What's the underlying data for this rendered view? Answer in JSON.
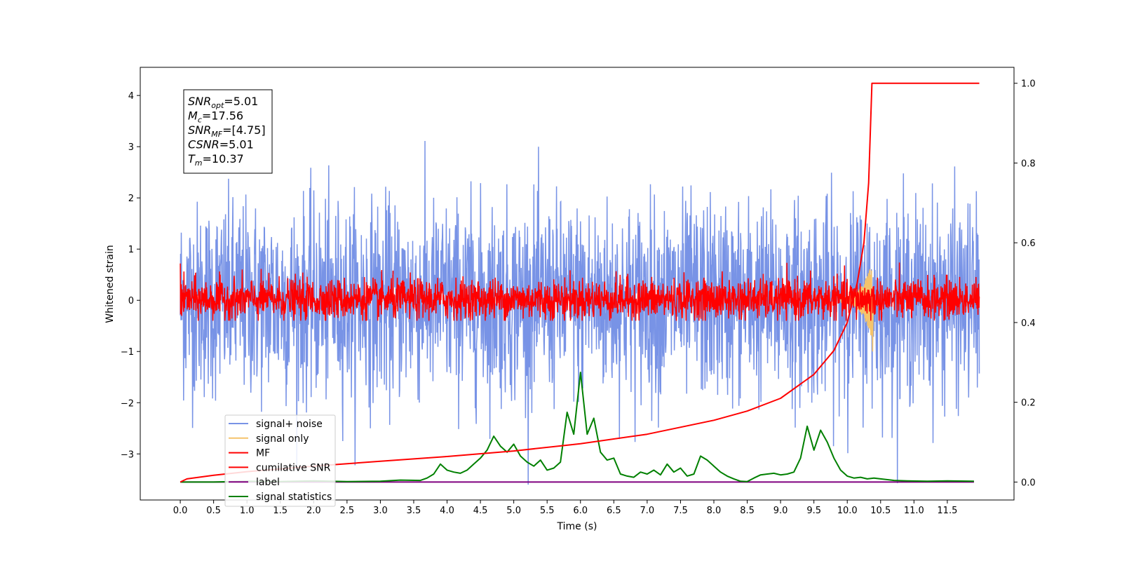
{
  "chart_data": {
    "type": "line",
    "title": "",
    "xlabel": "Time (s)",
    "ylabel": "Whitened strain",
    "xlim": [
      -0.6,
      12.5
    ],
    "ylim": [
      -3.9,
      4.55
    ],
    "y2lim": [
      -0.045,
      1.04
    ],
    "x_ticks": [
      "0.0",
      "0.5",
      "1.0",
      "1.5",
      "2.0",
      "2.5",
      "3.0",
      "3.5",
      "4.0",
      "4.5",
      "5.0",
      "5.5",
      "6.0",
      "6.5",
      "7.0",
      "7.5",
      "8.0",
      "8.5",
      "9.0",
      "9.5",
      "10.0",
      "10.5",
      "11.0",
      "11.5"
    ],
    "y_ticks": [
      "−3",
      "−2",
      "−1",
      "0",
      "1",
      "2",
      "3",
      "4"
    ],
    "y2_ticks": [
      "0.0",
      "0.2",
      "0.4",
      "0.6",
      "0.8",
      "1.0"
    ],
    "y_tick_values": [
      -3,
      -2,
      -1,
      0,
      1,
      2,
      3,
      4
    ],
    "y2_tick_values": [
      0,
      0.2,
      0.4,
      0.6,
      0.8,
      1.0
    ],
    "x_range": [
      0,
      11.98
    ],
    "merger_time": 10.37,
    "series": [
      {
        "name": "signal+ noise",
        "color": "#7893e6",
        "axis": "left",
        "note_std": 0.95
      },
      {
        "name": "signal only",
        "color": "#f5c46b",
        "axis": "left"
      },
      {
        "name": "MF",
        "color": "#ff0000",
        "axis": "left",
        "note_std": 0.2
      },
      {
        "name": "cumilative SNR",
        "color": "#ff0000",
        "axis": "right",
        "x": [
          0.0,
          0.1,
          0.5,
          1.0,
          2.0,
          3.0,
          4.0,
          5.0,
          6.0,
          7.0,
          8.0,
          8.5,
          9.0,
          9.5,
          9.8,
          10.0,
          10.15,
          10.25,
          10.32,
          10.37,
          11.98
        ],
        "values": [
          0.0,
          0.008,
          0.017,
          0.026,
          0.04,
          0.052,
          0.064,
          0.078,
          0.096,
          0.12,
          0.155,
          0.178,
          0.21,
          0.27,
          0.33,
          0.4,
          0.5,
          0.6,
          0.75,
          1.0,
          1.0
        ]
      },
      {
        "name": "label",
        "color": "#800080",
        "axis": "right",
        "x": [
          0,
          11.9
        ],
        "values": [
          0,
          0
        ]
      },
      {
        "name": "signal statistics",
        "color": "#008000",
        "axis": "right",
        "x": [
          0.0,
          0.5,
          1.0,
          1.5,
          2.0,
          2.5,
          3.0,
          3.3,
          3.6,
          3.7,
          3.8,
          3.9,
          4.0,
          4.1,
          4.2,
          4.3,
          4.4,
          4.5,
          4.6,
          4.7,
          4.8,
          4.9,
          5.0,
          5.1,
          5.2,
          5.3,
          5.4,
          5.5,
          5.6,
          5.7,
          5.8,
          5.9,
          6.0,
          6.1,
          6.2,
          6.3,
          6.4,
          6.5,
          6.6,
          6.7,
          6.8,
          6.9,
          7.0,
          7.1,
          7.2,
          7.3,
          7.4,
          7.5,
          7.6,
          7.7,
          7.8,
          7.9,
          8.0,
          8.1,
          8.2,
          8.3,
          8.4,
          8.5,
          8.6,
          8.7,
          8.8,
          8.9,
          9.0,
          9.1,
          9.2,
          9.3,
          9.4,
          9.5,
          9.6,
          9.7,
          9.8,
          9.9,
          10.0,
          10.1,
          10.2,
          10.3,
          10.4,
          10.5,
          10.7,
          10.9,
          11.2,
          11.5,
          11.9
        ],
        "values": [
          0.0,
          0.0,
          0.002,
          0.001,
          0.003,
          0.001,
          0.002,
          0.005,
          0.004,
          0.01,
          0.02,
          0.045,
          0.03,
          0.025,
          0.022,
          0.03,
          0.045,
          0.06,
          0.08,
          0.115,
          0.09,
          0.075,
          0.095,
          0.065,
          0.05,
          0.04,
          0.055,
          0.03,
          0.035,
          0.05,
          0.175,
          0.12,
          0.275,
          0.12,
          0.16,
          0.075,
          0.055,
          0.06,
          0.02,
          0.015,
          0.012,
          0.025,
          0.02,
          0.03,
          0.018,
          0.045,
          0.025,
          0.035,
          0.015,
          0.02,
          0.065,
          0.055,
          0.04,
          0.025,
          0.015,
          0.008,
          0.002,
          0.001,
          0.01,
          0.018,
          0.02,
          0.022,
          0.018,
          0.02,
          0.025,
          0.06,
          0.14,
          0.08,
          0.13,
          0.1,
          0.06,
          0.03,
          0.015,
          0.01,
          0.012,
          0.008,
          0.01,
          0.008,
          0.004,
          0.003,
          0.002,
          0.003,
          0.002
        ]
      }
    ],
    "legend": {
      "placement": "lower-left",
      "entries": [
        "signal+ noise",
        "signal only",
        "MF",
        "cumilative SNR",
        "label",
        "signal statistics"
      ],
      "colors": [
        "#7893e6",
        "#f5c46b",
        "#ff0000",
        "#ff0000",
        "#800080",
        "#008000"
      ]
    },
    "annotation": {
      "lines": [
        {
          "base": "SNR",
          "sub": "opt",
          "rest": "=5.01"
        },
        {
          "base": "M",
          "sub": "c",
          "rest": "=17.56"
        },
        {
          "base": "SNR",
          "sub": "MF",
          "rest": "=[4.75]"
        },
        {
          "base": "CSNR",
          "sub": "",
          "rest": "=5.01"
        },
        {
          "base": "T",
          "sub": "m",
          "rest": "=10.37"
        }
      ]
    },
    "grid": false
  }
}
